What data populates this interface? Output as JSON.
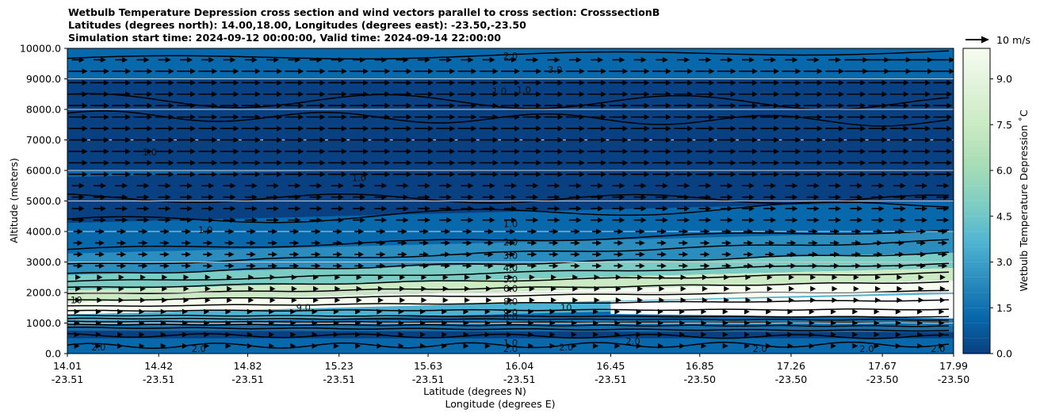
{
  "chart_data": {
    "type": "contourf",
    "title_lines": [
      "Wetbulb Temperature Depression cross section and wind vectors parallel to cross section: CrosssectionB",
      "Latitudes (degrees north): 14.00,18.00, Longitudes (degrees east): -23.50,-23.50",
      "Simulation start time: 2024-09-12 00:00:00, Valid time: 2024-09-14 22:00:00"
    ],
    "ylabel": "Altitude (meters)",
    "xlabel_lat": "Latitude (degrees N)",
    "xlabel_lon": "Longitude (degrees E)",
    "ylim": [
      0,
      10000
    ],
    "yticks": [
      "0.0",
      "1000.0",
      "2000.0",
      "3000.0",
      "4000.0",
      "5000.0",
      "6000.0",
      "7000.0",
      "8000.0",
      "9000.0",
      "10000.0"
    ],
    "xticks": [
      {
        "lat": "14.01",
        "lon": "-23.51"
      },
      {
        "lat": "14.42",
        "lon": "-23.51"
      },
      {
        "lat": "14.82",
        "lon": "-23.51"
      },
      {
        "lat": "15.23",
        "lon": "-23.51"
      },
      {
        "lat": "15.63",
        "lon": "-23.51"
      },
      {
        "lat": "16.04",
        "lon": "-23.51"
      },
      {
        "lat": "16.45",
        "lon": "-23.51"
      },
      {
        "lat": "16.85",
        "lon": "-23.50"
      },
      {
        "lat": "17.26",
        "lon": "-23.50"
      },
      {
        "lat": "17.67",
        "lon": "-23.50"
      },
      {
        "lat": "17.99",
        "lon": "-23.50"
      }
    ],
    "colorbar": {
      "label": "Wetbulb Temperature Depression $^\\circ$C",
      "label_display": "Wetbulb Temperature Depression ˚C",
      "range": [
        0,
        10
      ],
      "ticks": [
        "0.0",
        "1.5",
        "3.0",
        "4.5",
        "6.0",
        "7.5",
        "9.0"
      ],
      "colors": [
        "#084081",
        "#0868ac",
        "#2b8cbe",
        "#4eb3d3",
        "#7bccc4",
        "#a8ddb5",
        "#ccebc5",
        "#e0f3db",
        "#f7fcf0"
      ]
    },
    "quiver_key": {
      "label": "10 m/s"
    },
    "layers": [
      {
        "alt": 0,
        "value": 1.2
      },
      {
        "alt": 500,
        "value": 0.8
      },
      {
        "alt": 900,
        "value": 1.6
      },
      {
        "alt": 1150,
        "value": 3.5
      },
      {
        "alt": 1500,
        "value": 9.0
      },
      {
        "alt": 1900,
        "value": 7.5
      },
      {
        "alt": 2300,
        "value": 5.0
      },
      {
        "alt": 2800,
        "value": 3.2
      },
      {
        "alt": 3500,
        "value": 1.8
      },
      {
        "alt": 4500,
        "value": 0.9
      },
      {
        "alt": 6000,
        "value": 0.3
      },
      {
        "alt": 7500,
        "value": 0.6
      },
      {
        "alt": 9000,
        "value": 1.4
      },
      {
        "alt": 10000,
        "value": 1.0
      }
    ],
    "contour_labels": [
      {
        "text": "2.0",
        "x": 16.0,
        "y": 9700
      },
      {
        "text": "3.0",
        "x": 16.2,
        "y": 9250
      },
      {
        "text": "1.0",
        "x": 15.95,
        "y": 8550
      },
      {
        "text": "1.0",
        "x": 16.06,
        "y": 8580
      },
      {
        "text": "1.0",
        "x": 14.38,
        "y": 6550
      },
      {
        "text": "1.0",
        "x": 15.32,
        "y": 5700
      },
      {
        "text": "1.0",
        "x": 14.63,
        "y": 4000
      },
      {
        "text": "1.0",
        "x": 16.0,
        "y": 4200
      },
      {
        "text": "2.0",
        "x": 16.0,
        "y": 3600
      },
      {
        "text": "3.0",
        "x": 16.0,
        "y": 3150
      },
      {
        "text": "4.0",
        "x": 16.0,
        "y": 2750
      },
      {
        "text": "5.0",
        "x": 16.0,
        "y": 2380
      },
      {
        "text": "6.0",
        "x": 16.0,
        "y": 2080
      },
      {
        "text": "8.0",
        "x": 16.0,
        "y": 1650
      },
      {
        "text": "9.0",
        "x": 16.0,
        "y": 1300
      },
      {
        "text": "8.0",
        "x": 16.0,
        "y": 1150
      },
      {
        "text": "1.0",
        "x": 16.0,
        "y": 300
      },
      {
        "text": "2.0",
        "x": 16.0,
        "y": 100
      },
      {
        "text": "9.0",
        "x": 15.07,
        "y": 1450
      },
      {
        "text": "2.0",
        "x": 14.15,
        "y": 150
      },
      {
        "text": "2.0",
        "x": 14.6,
        "y": 100
      },
      {
        "text": "2.0",
        "x": 16.25,
        "y": 150
      },
      {
        "text": "2.0",
        "x": 16.55,
        "y": 350
      },
      {
        "text": "2.0",
        "x": 17.12,
        "y": 100
      },
      {
        "text": "2.0",
        "x": 17.6,
        "y": 100
      },
      {
        "text": "2.0",
        "x": 17.92,
        "y": 100
      },
      {
        "text": "10",
        "x": 14.05,
        "y": 1700
      },
      {
        "text": "10",
        "x": 16.25,
        "y": 1450
      }
    ]
  }
}
